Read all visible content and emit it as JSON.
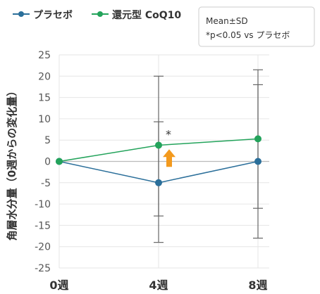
{
  "note": {
    "line1": "Mean±SD",
    "line2": "*p<0.05 vs プラセボ"
  },
  "colors": {
    "placebo": "#2b6f9a",
    "coq10": "#23a35b",
    "arrow": "#f39a1e",
    "grid": "#e6e6e6",
    "error_bar": "#666666",
    "zero_line": "#bbbbbb"
  },
  "chart_data": {
    "type": "line",
    "title": "",
    "xlabel": "",
    "ylabel": "角層水分量（0週からの変化量）",
    "categories": [
      "0週",
      "4週",
      "8週"
    ],
    "ylim": [
      -25,
      25
    ],
    "y_ticks": [
      25,
      20,
      15,
      10,
      5,
      0,
      -5,
      -10,
      -15,
      -20,
      -25
    ],
    "grid": true,
    "legend_position": "top-left",
    "series": [
      {
        "name": "プラセボ",
        "color": "#2b6f9a",
        "values": [
          0,
          -5,
          0
        ],
        "error_low": [
          0,
          -12.8,
          -11
        ],
        "error_high": [
          0,
          9.3,
          18
        ]
      },
      {
        "name": "還元型 CoQ10",
        "color": "#23a35b",
        "values": [
          0,
          3.8,
          5.3
        ],
        "error_low": [
          0,
          -19,
          -18
        ],
        "error_high": [
          0,
          20,
          21.5
        ]
      }
    ],
    "annotations": [
      {
        "text": "*",
        "category": "4週",
        "y": 6.8
      },
      {
        "marker": "up-arrow",
        "category": "4週",
        "y": 1.2
      }
    ]
  }
}
